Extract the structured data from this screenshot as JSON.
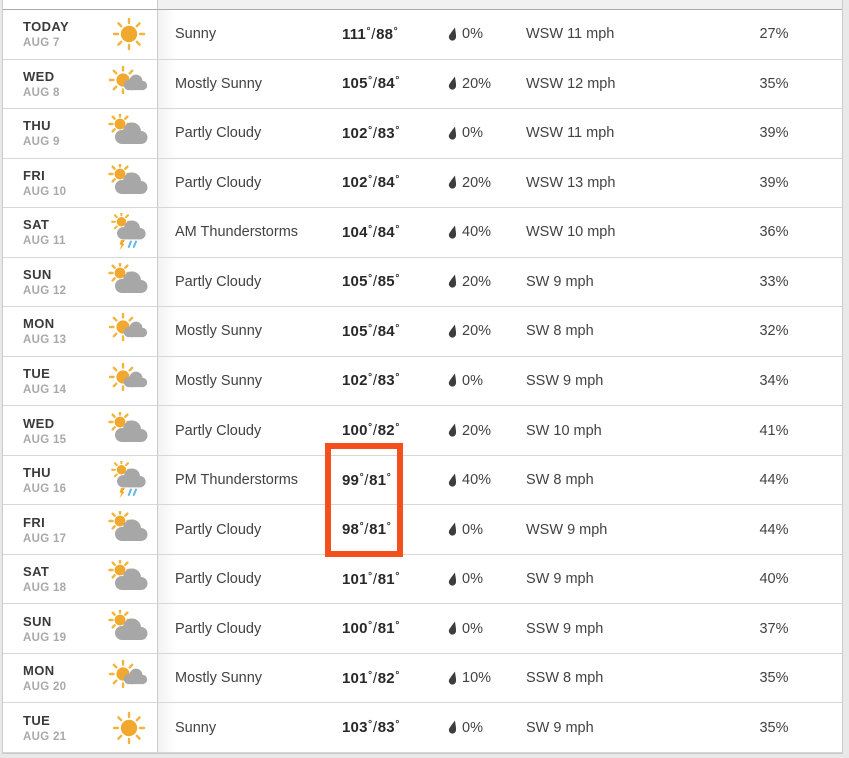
{
  "units": {
    "degree": "°",
    "separator": "/"
  },
  "highlight": {
    "color": "#f4501e",
    "highlighted_rows": [
      "AUG 16",
      "AUG 17"
    ],
    "highlighted_column": "temperature"
  },
  "rows": [
    {
      "day": "TODAY",
      "date": "AUG 7",
      "icon": "sunny",
      "condition": "Sunny",
      "high": "111",
      "low": "88",
      "precip": "0%",
      "wind": "WSW 11 mph",
      "humidity": "27%"
    },
    {
      "day": "WED",
      "date": "AUG 8",
      "icon": "mostly-sunny",
      "condition": "Mostly Sunny",
      "high": "105",
      "low": "84",
      "precip": "20%",
      "wind": "WSW 12 mph",
      "humidity": "35%"
    },
    {
      "day": "THU",
      "date": "AUG 9",
      "icon": "partly-cloudy",
      "condition": "Partly Cloudy",
      "high": "102",
      "low": "83",
      "precip": "0%",
      "wind": "WSW 11 mph",
      "humidity": "39%"
    },
    {
      "day": "FRI",
      "date": "AUG 10",
      "icon": "partly-cloudy",
      "condition": "Partly Cloudy",
      "high": "102",
      "low": "84",
      "precip": "20%",
      "wind": "WSW 13 mph",
      "humidity": "39%"
    },
    {
      "day": "SAT",
      "date": "AUG 11",
      "icon": "thunderstorms",
      "condition": "AM Thunderstorms",
      "high": "104",
      "low": "84",
      "precip": "40%",
      "wind": "WSW 10 mph",
      "humidity": "36%"
    },
    {
      "day": "SUN",
      "date": "AUG 12",
      "icon": "partly-cloudy",
      "condition": "Partly Cloudy",
      "high": "105",
      "low": "85",
      "precip": "20%",
      "wind": "SW 9 mph",
      "humidity": "33%"
    },
    {
      "day": "MON",
      "date": "AUG 13",
      "icon": "mostly-sunny",
      "condition": "Mostly Sunny",
      "high": "105",
      "low": "84",
      "precip": "20%",
      "wind": "SW 8 mph",
      "humidity": "32%"
    },
    {
      "day": "TUE",
      "date": "AUG 14",
      "icon": "mostly-sunny",
      "condition": "Mostly Sunny",
      "high": "102",
      "low": "83",
      "precip": "0%",
      "wind": "SSW 9 mph",
      "humidity": "34%"
    },
    {
      "day": "WED",
      "date": "AUG 15",
      "icon": "partly-cloudy",
      "condition": "Partly Cloudy",
      "high": "100",
      "low": "82",
      "precip": "20%",
      "wind": "SW 10 mph",
      "humidity": "41%"
    },
    {
      "day": "THU",
      "date": "AUG 16",
      "icon": "thunderstorms",
      "condition": "PM Thunderstorms",
      "high": "99",
      "low": "81",
      "precip": "40%",
      "wind": "SW 8 mph",
      "humidity": "44%"
    },
    {
      "day": "FRI",
      "date": "AUG 17",
      "icon": "partly-cloudy",
      "condition": "Partly Cloudy",
      "high": "98",
      "low": "81",
      "precip": "0%",
      "wind": "WSW 9 mph",
      "humidity": "44%"
    },
    {
      "day": "SAT",
      "date": "AUG 18",
      "icon": "partly-cloudy",
      "condition": "Partly Cloudy",
      "high": "101",
      "low": "81",
      "precip": "0%",
      "wind": "SW 9 mph",
      "humidity": "40%"
    },
    {
      "day": "SUN",
      "date": "AUG 19",
      "icon": "partly-cloudy",
      "condition": "Partly Cloudy",
      "high": "100",
      "low": "81",
      "precip": "0%",
      "wind": "SSW 9 mph",
      "humidity": "37%"
    },
    {
      "day": "MON",
      "date": "AUG 20",
      "icon": "mostly-sunny",
      "condition": "Mostly Sunny",
      "high": "101",
      "low": "82",
      "precip": "10%",
      "wind": "SSW 8 mph",
      "humidity": "35%"
    },
    {
      "day": "TUE",
      "date": "AUG 21",
      "icon": "sunny",
      "condition": "Sunny",
      "high": "103",
      "low": "83",
      "precip": "0%",
      "wind": "SW 9 mph",
      "humidity": "35%"
    }
  ]
}
